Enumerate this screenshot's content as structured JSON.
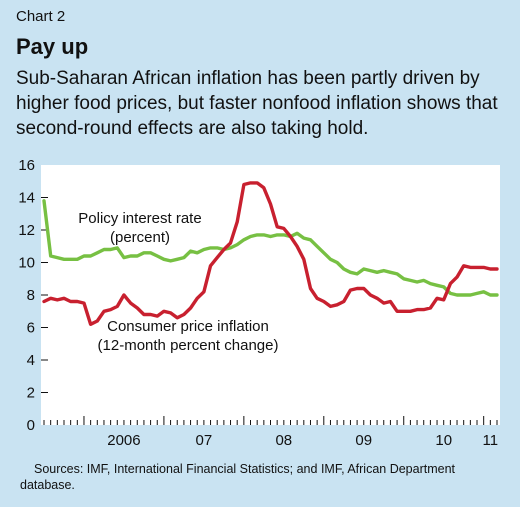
{
  "header": {
    "chart_number": "Chart 2",
    "title": "Pay up",
    "subtitle": "Sub-Saharan African inflation has been partly driven by higher food prices, but faster nonfood inflation shows that second-round effects are also taking hold."
  },
  "footer": {
    "source": "Sources: IMF, International Financial Statistics; and IMF, African Department database."
  },
  "colors": {
    "background": "#c9e3f2",
    "plot_background": "#ffffff",
    "policy_rate": "#77c043",
    "cpi": "#c8202f"
  },
  "chart_data": {
    "type": "line",
    "title": "Pay up",
    "subtitle": "Sub-Saharan African inflation has been partly driven by higher food prices, but faster nonfood inflation shows that second-round effects are also taking hold.",
    "xlabel": "",
    "ylabel": "",
    "ylim": [
      0,
      16
    ],
    "yticks": [
      0,
      2,
      4,
      6,
      8,
      10,
      12,
      14,
      16
    ],
    "x_start": "2005-07",
    "x_end": "2011-03",
    "year_labels": [
      {
        "label": "2006",
        "at": "2006-07"
      },
      {
        "label": "07",
        "at": "2007-07"
      },
      {
        "label": "08",
        "at": "2008-07"
      },
      {
        "label": "09",
        "at": "2009-07"
      },
      {
        "label": "10",
        "at": "2010-07"
      },
      {
        "label": "11",
        "at": "2011-02"
      }
    ],
    "grid": false,
    "legend": "none",
    "annotations": [
      {
        "lines": [
          "Policy interest rate",
          "(percent)"
        ],
        "series": "Policy interest rate"
      },
      {
        "lines": [
          "Consumer price inflation",
          "(12-month percent change)"
        ],
        "series": "Consumer price inflation"
      }
    ],
    "series": [
      {
        "name": "Policy interest rate",
        "x": [
          "2005-07",
          "2005-08",
          "2005-09",
          "2005-10",
          "2005-11",
          "2005-12",
          "2006-01",
          "2006-02",
          "2006-03",
          "2006-04",
          "2006-05",
          "2006-06",
          "2006-07",
          "2006-08",
          "2006-09",
          "2006-10",
          "2006-11",
          "2006-12",
          "2007-01",
          "2007-02",
          "2007-03",
          "2007-04",
          "2007-05",
          "2007-06",
          "2007-07",
          "2007-08",
          "2007-09",
          "2007-10",
          "2007-11",
          "2007-12",
          "2008-01",
          "2008-02",
          "2008-03",
          "2008-04",
          "2008-05",
          "2008-06",
          "2008-07",
          "2008-08",
          "2008-09",
          "2008-10",
          "2008-11",
          "2008-12",
          "2009-01",
          "2009-02",
          "2009-03",
          "2009-04",
          "2009-05",
          "2009-06",
          "2009-07",
          "2009-08",
          "2009-09",
          "2009-10",
          "2009-11",
          "2009-12",
          "2010-01",
          "2010-02",
          "2010-03",
          "2010-04",
          "2010-05",
          "2010-06",
          "2010-07",
          "2010-08",
          "2010-09",
          "2010-10",
          "2010-11",
          "2010-12",
          "2011-01",
          "2011-02",
          "2011-03"
        ],
        "values": [
          13.8,
          10.4,
          10.3,
          10.2,
          10.2,
          10.2,
          10.4,
          10.4,
          10.6,
          10.8,
          10.8,
          10.9,
          10.3,
          10.4,
          10.4,
          10.6,
          10.6,
          10.4,
          10.2,
          10.1,
          10.2,
          10.3,
          10.7,
          10.6,
          10.8,
          10.9,
          10.9,
          10.8,
          10.9,
          11.1,
          11.4,
          11.6,
          11.7,
          11.7,
          11.6,
          11.7,
          11.7,
          11.6,
          11.8,
          11.5,
          11.4,
          11.0,
          10.6,
          10.2,
          10.0,
          9.6,
          9.4,
          9.3,
          9.6,
          9.5,
          9.4,
          9.5,
          9.4,
          9.3,
          9.0,
          8.9,
          8.8,
          8.9,
          8.7,
          8.6,
          8.5,
          8.1,
          8.0,
          8.0,
          8.0,
          8.1,
          8.2,
          8.0,
          8.0
        ]
      },
      {
        "name": "Consumer price inflation",
        "x": [
          "2005-07",
          "2005-08",
          "2005-09",
          "2005-10",
          "2005-11",
          "2005-12",
          "2006-01",
          "2006-02",
          "2006-03",
          "2006-04",
          "2006-05",
          "2006-06",
          "2006-07",
          "2006-08",
          "2006-09",
          "2006-10",
          "2006-11",
          "2006-12",
          "2007-01",
          "2007-02",
          "2007-03",
          "2007-04",
          "2007-05",
          "2007-06",
          "2007-07",
          "2007-08",
          "2007-09",
          "2007-10",
          "2007-11",
          "2007-12",
          "2008-01",
          "2008-02",
          "2008-03",
          "2008-04",
          "2008-05",
          "2008-06",
          "2008-07",
          "2008-08",
          "2008-09",
          "2008-10",
          "2008-11",
          "2008-12",
          "2009-01",
          "2009-02",
          "2009-03",
          "2009-04",
          "2009-05",
          "2009-06",
          "2009-07",
          "2009-08",
          "2009-09",
          "2009-10",
          "2009-11",
          "2009-12",
          "2010-01",
          "2010-02",
          "2010-03",
          "2010-04",
          "2010-05",
          "2010-06",
          "2010-07",
          "2010-08",
          "2010-09",
          "2010-10",
          "2010-11",
          "2010-12",
          "2011-01",
          "2011-02",
          "2011-03"
        ],
        "values": [
          7.6,
          7.8,
          7.7,
          7.8,
          7.6,
          7.6,
          7.5,
          6.2,
          6.4,
          7.0,
          7.1,
          7.3,
          8.0,
          7.5,
          7.2,
          6.8,
          6.8,
          6.7,
          7.0,
          6.9,
          6.6,
          6.8,
          7.2,
          7.8,
          8.2,
          9.8,
          10.3,
          10.8,
          11.2,
          12.5,
          14.8,
          14.9,
          14.9,
          14.6,
          13.6,
          12.2,
          12.1,
          11.6,
          11.0,
          10.2,
          8.4,
          7.8,
          7.6,
          7.3,
          7.4,
          7.6,
          8.3,
          8.4,
          8.4,
          8.0,
          7.8,
          7.5,
          7.6,
          7.0,
          7.0,
          7.0,
          7.1,
          7.1,
          7.2,
          7.8,
          7.7,
          8.7,
          9.1,
          9.8,
          9.7,
          9.7,
          9.7,
          9.6,
          9.6
        ]
      }
    ]
  }
}
